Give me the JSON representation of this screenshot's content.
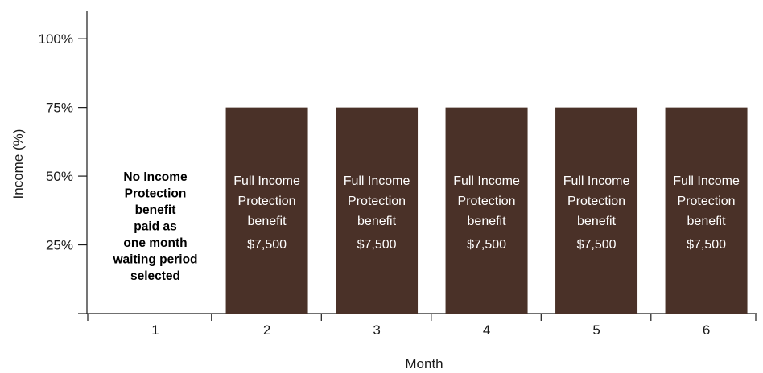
{
  "chart_data": {
    "type": "bar",
    "categories": [
      "1",
      "2",
      "3",
      "4",
      "5",
      "6"
    ],
    "values": [
      0,
      75,
      75,
      75,
      75,
      75
    ],
    "xlabel": "Month",
    "ylabel": "Income (%)",
    "ylim": [
      0,
      110
    ],
    "yticks": [
      25,
      50,
      75,
      100
    ],
    "ytick_labels": [
      "25%",
      "50%",
      "75%",
      "100%"
    ],
    "bar_color": "#4a3128",
    "bar_labels": [
      [],
      [
        "Full Income",
        "Protection",
        "benefit",
        "$7,500"
      ],
      [
        "Full Income",
        "Protection",
        "benefit",
        "$7,500"
      ],
      [
        "Full Income",
        "Protection",
        "benefit",
        "$7,500"
      ],
      [
        "Full Income",
        "Protection",
        "benefit",
        "$7,500"
      ],
      [
        "Full Income",
        "Protection",
        "benefit",
        "$7,500"
      ]
    ],
    "annotation": {
      "category": "1",
      "lines": [
        "No Income",
        "Protection",
        "benefit",
        "paid as",
        "one month",
        "waiting period",
        "selected"
      ]
    },
    "grid": false,
    "legend": "none"
  }
}
